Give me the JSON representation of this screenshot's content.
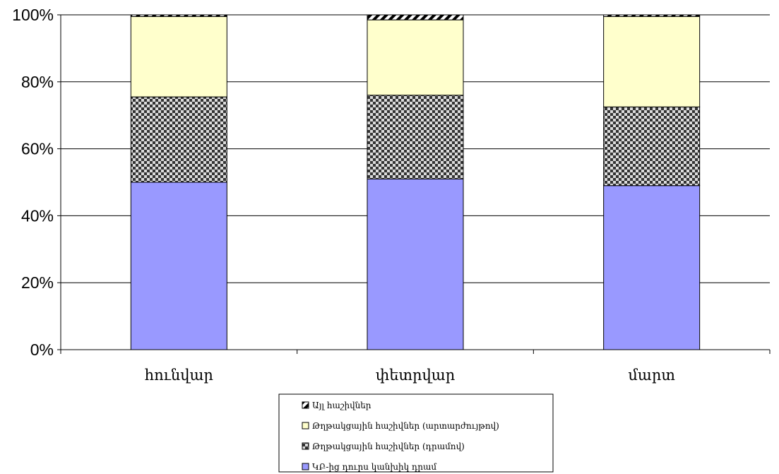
{
  "chart_data": {
    "type": "bar",
    "stacked": true,
    "percent_scale": true,
    "categories": [
      "հունվար",
      "փետրվար",
      "մարտ"
    ],
    "y_ticks": [
      "0%",
      "20%",
      "40%",
      "60%",
      "80%",
      "100%"
    ],
    "ylim": [
      0,
      100
    ],
    "grid": "horizontal",
    "legend_position": "bottom",
    "series": [
      {
        "name": "ԿԲ-ից դուրս կանխիկ դրամ",
        "color": "#9999ff",
        "pattern": "solid",
        "values": [
          50,
          51,
          49
        ]
      },
      {
        "name": "Թղթակցային հաշիվներ (դրամով)",
        "color": "#333333",
        "pattern": "checker",
        "values": [
          25.5,
          25,
          23.5
        ]
      },
      {
        "name": "Թղթակցային հաշիվներ (արտարժույթով)",
        "color": "#ffffcc",
        "pattern": "solid",
        "values": [
          24,
          22.5,
          27
        ]
      },
      {
        "name": "Այլ հաշիվներ",
        "color": "#000000",
        "pattern": "diagonal",
        "values": [
          0.5,
          1.5,
          0.5
        ]
      }
    ]
  }
}
